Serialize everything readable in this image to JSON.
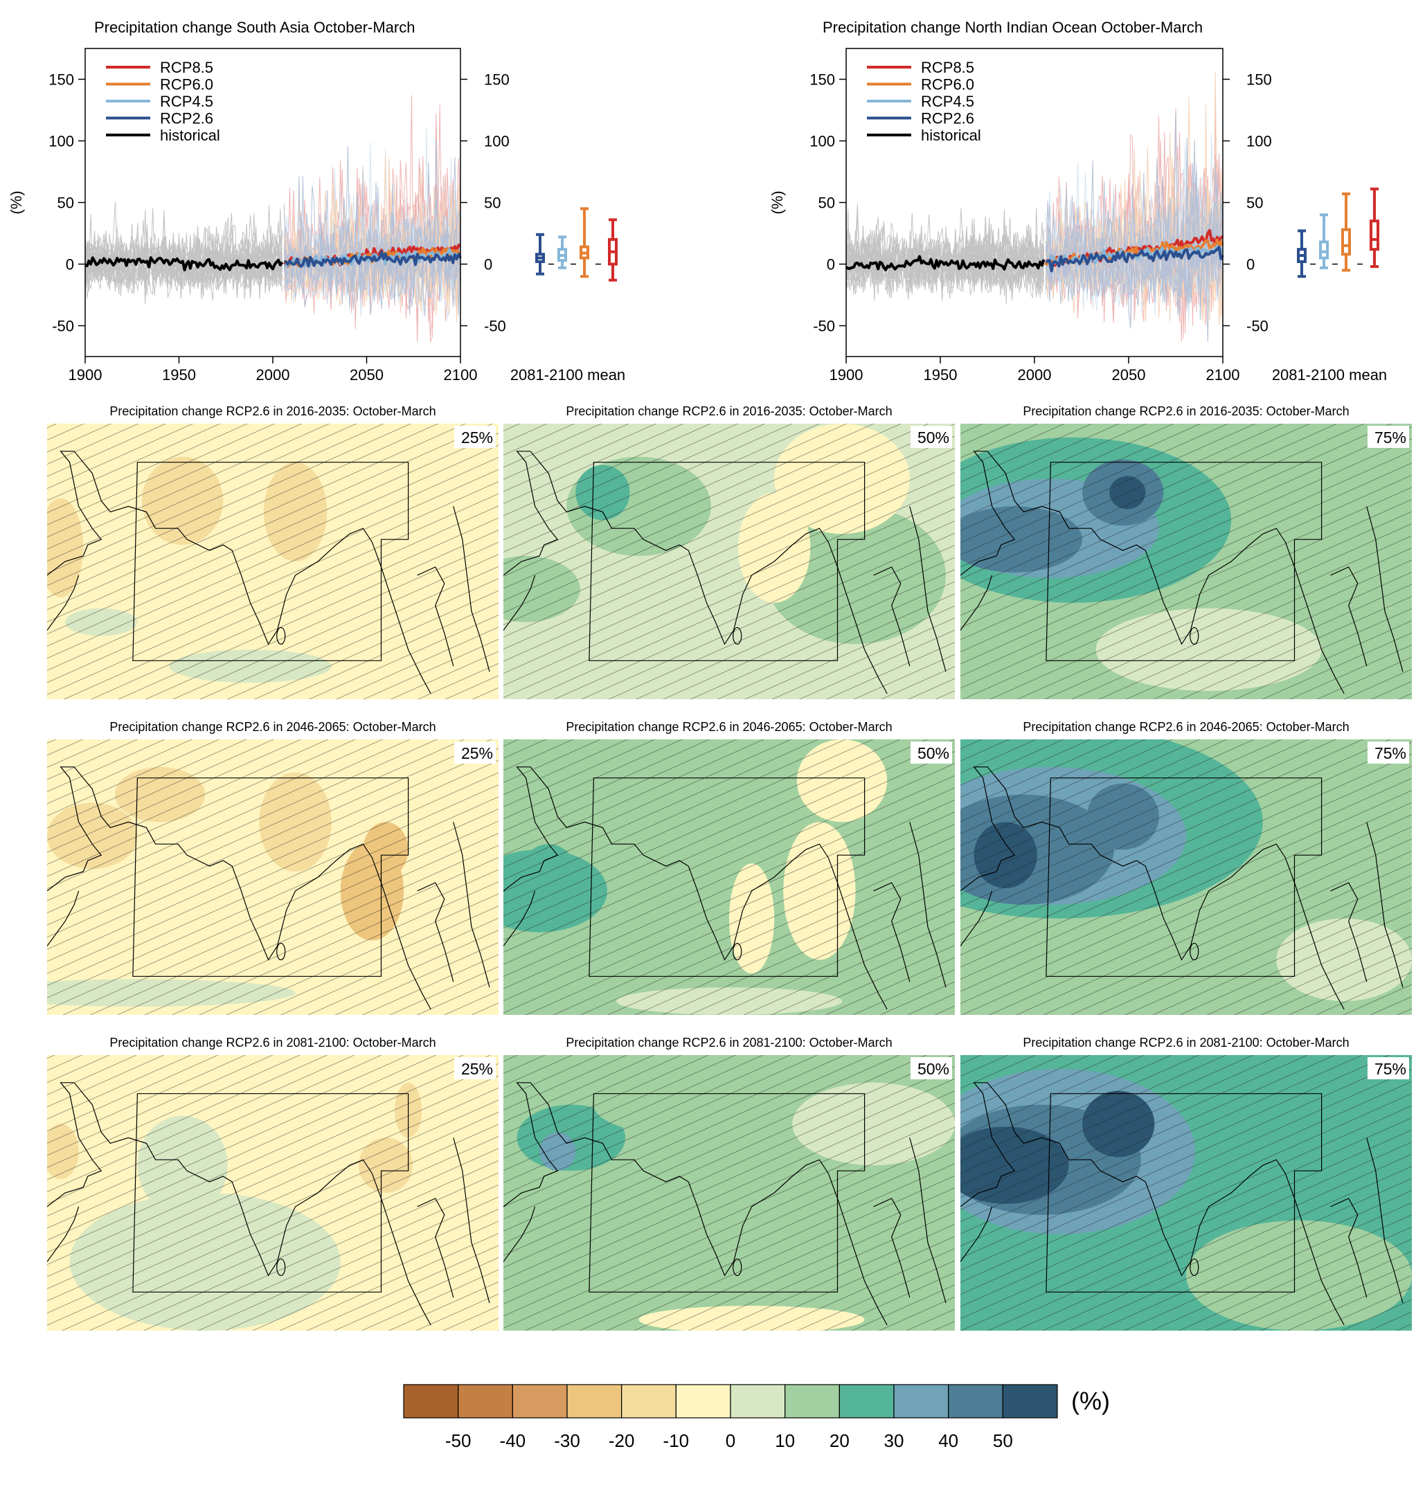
{
  "top_panels": [
    {
      "title": "Precipitation change South Asia October-March",
      "ylabel": "(%)",
      "xlabel_box": "2081-2100 mean",
      "legend": [
        "RCP8.5",
        "RCP6.0",
        "RCP4.5",
        "RCP2.6",
        "historical"
      ],
      "xticks": [
        "1900",
        "1950",
        "2000",
        "2050",
        "2100"
      ],
      "yticks": [
        "-50",
        "0",
        "50",
        "100",
        "150"
      ]
    },
    {
      "title": "Precipitation change North Indian Ocean October-March",
      "ylabel": "(%)",
      "xlabel_box": "2081-2100 mean",
      "legend": [
        "RCP8.5",
        "RCP6.0",
        "RCP4.5",
        "RCP2.6",
        "historical"
      ],
      "xticks": [
        "1900",
        "1950",
        "2000",
        "2050",
        "2100"
      ],
      "yticks": [
        "-50",
        "0",
        "50",
        "100",
        "150"
      ]
    }
  ],
  "map_rows": [
    {
      "titles": [
        "Precipitation change RCP2.6 in 2016-2035: October-March",
        "Precipitation change RCP2.6 in 2016-2035: October-March",
        "Precipitation change RCP2.6 in 2016-2035: October-March"
      ]
    },
    {
      "titles": [
        "Precipitation change RCP2.6 in 2046-2065: October-March",
        "Precipitation change RCP2.6 in 2046-2065: October-March",
        "Precipitation change RCP2.6 in 2046-2065: October-March"
      ]
    },
    {
      "titles": [
        "Precipitation change RCP2.6 in 2081-2100: October-March",
        "Precipitation change RCP2.6 in 2081-2100: October-March",
        "Precipitation change RCP2.6 in 2081-2100: October-March"
      ]
    }
  ],
  "percentiles": [
    "25%",
    "50%",
    "75%"
  ],
  "colorbar": {
    "unit": "(%)",
    "ticks": [
      "-50",
      "-40",
      "-30",
      "-20",
      "-10",
      "0",
      "10",
      "20",
      "30",
      "40",
      "50"
    ],
    "colors": [
      "#a9612b",
      "#c47f43",
      "#d89b5f",
      "#edc57c",
      "#f5dd9e",
      "#fff5c0",
      "#d9e8c4",
      "#a2d0a0",
      "#55b598",
      "#70a2b8",
      "#4d7e96",
      "#2c5570"
    ]
  },
  "chart_data": [
    {
      "type": "line",
      "title": "Precipitation change South Asia October-March",
      "ylabel": "(%)",
      "xlim": [
        1900,
        2100
      ],
      "ylim": [
        -75,
        175
      ],
      "series": [
        {
          "name": "historical",
          "color": "#000000",
          "x": [
            1900,
            1920,
            1940,
            1960,
            1980,
            2005
          ],
          "values": [
            1,
            2,
            3,
            1,
            -1,
            0
          ]
        },
        {
          "name": "RCP2.6",
          "color": "#2b4f8f",
          "x": [
            2006,
            2030,
            2050,
            2075,
            2100
          ],
          "values": [
            1,
            3,
            4,
            5,
            5
          ]
        },
        {
          "name": "RCP4.5",
          "color": "#86b7d9",
          "x": [
            2006,
            2030,
            2050,
            2075,
            2100
          ],
          "values": [
            1,
            3,
            5,
            7,
            8
          ]
        },
        {
          "name": "RCP6.0",
          "color": "#e57f31",
          "x": [
            2006,
            2030,
            2050,
            2075,
            2100
          ],
          "values": [
            1,
            3,
            5,
            8,
            10
          ]
        },
        {
          "name": "RCP8.5",
          "color": "#d12b29",
          "x": [
            2006,
            2030,
            2050,
            2075,
            2100
          ],
          "values": [
            1,
            4,
            7,
            11,
            14
          ]
        }
      ],
      "boxplot_2081_2100": [
        {
          "name": "RCP2.6",
          "color": "#2b4f8f",
          "min": -8,
          "q1": 2,
          "median": 5,
          "q3": 8,
          "max": 24
        },
        {
          "name": "RCP4.5",
          "color": "#86b7d9",
          "min": -3,
          "q1": 3,
          "median": 7,
          "q3": 12,
          "max": 22
        },
        {
          "name": "RCP6.0",
          "color": "#e57f31",
          "min": -10,
          "q1": 5,
          "median": 9,
          "q3": 14,
          "max": 45
        },
        {
          "name": "RCP8.5",
          "color": "#d12b29",
          "min": -13,
          "q1": 0,
          "median": 10,
          "q3": 20,
          "max": 36
        }
      ]
    },
    {
      "type": "line",
      "title": "Precipitation change North Indian Ocean October-March",
      "ylabel": "(%)",
      "xlim": [
        1900,
        2100
      ],
      "ylim": [
        -75,
        175
      ],
      "series": [
        {
          "name": "historical",
          "color": "#000000",
          "x": [
            1900,
            1920,
            1940,
            1960,
            1980,
            2005
          ],
          "values": [
            0,
            -2,
            1,
            -1,
            0,
            1
          ]
        },
        {
          "name": "RCP2.6",
          "color": "#2b4f8f",
          "x": [
            2006,
            2030,
            2050,
            2075,
            2100
          ],
          "values": [
            1,
            4,
            6,
            8,
            9
          ]
        },
        {
          "name": "RCP4.5",
          "color": "#86b7d9",
          "x": [
            2006,
            2030,
            2050,
            2075,
            2100
          ],
          "values": [
            2,
            5,
            8,
            10,
            12
          ]
        },
        {
          "name": "RCP6.0",
          "color": "#e57f31",
          "x": [
            2006,
            2030,
            2050,
            2075,
            2100
          ],
          "values": [
            2,
            5,
            9,
            13,
            16
          ]
        },
        {
          "name": "RCP8.5",
          "color": "#d12b29",
          "x": [
            2006,
            2030,
            2050,
            2075,
            2100
          ],
          "values": [
            2,
            6,
            11,
            17,
            22
          ]
        }
      ],
      "boxplot_2081_2100": [
        {
          "name": "RCP2.6",
          "color": "#2b4f8f",
          "min": -10,
          "q1": 2,
          "median": 7,
          "q3": 12,
          "max": 27
        },
        {
          "name": "RCP4.5",
          "color": "#86b7d9",
          "min": -3,
          "q1": 5,
          "median": 10,
          "q3": 18,
          "max": 40
        },
        {
          "name": "RCP6.0",
          "color": "#e57f31",
          "min": -5,
          "q1": 8,
          "median": 15,
          "q3": 28,
          "max": 57
        },
        {
          "name": "RCP8.5",
          "color": "#d12b29",
          "min": -2,
          "q1": 12,
          "median": 20,
          "q3": 35,
          "max": 61
        }
      ]
    }
  ],
  "map_fields": [
    [
      {
        "base": 5,
        "blobs": [
          [
            0.03,
            0.45,
            0.05,
            0.18,
            4
          ],
          [
            0.3,
            0.28,
            0.09,
            0.16,
            4
          ],
          [
            0.55,
            0.32,
            0.07,
            0.18,
            4
          ],
          [
            0.45,
            0.88,
            0.18,
            0.06,
            6
          ],
          [
            0.12,
            0.72,
            0.08,
            0.05,
            6
          ]
        ]
      },
      {
        "base": 6,
        "blobs": [
          [
            0.05,
            0.6,
            0.12,
            0.12,
            7
          ],
          [
            0.3,
            0.3,
            0.16,
            0.18,
            7
          ],
          [
            0.78,
            0.55,
            0.2,
            0.25,
            7
          ],
          [
            0.75,
            0.2,
            0.15,
            0.2,
            5
          ],
          [
            0.6,
            0.45,
            0.08,
            0.2,
            5
          ],
          [
            0.22,
            0.25,
            0.06,
            0.1,
            8
          ]
        ]
      },
      {
        "base": 7,
        "blobs": [
          [
            0.25,
            0.35,
            0.35,
            0.3,
            8
          ],
          [
            0.2,
            0.38,
            0.24,
            0.18,
            9
          ],
          [
            0.12,
            0.42,
            0.15,
            0.12,
            10
          ],
          [
            0.36,
            0.25,
            0.09,
            0.12,
            10
          ],
          [
            0.37,
            0.25,
            0.04,
            0.06,
            11
          ],
          [
            0.8,
            0.5,
            0.18,
            0.3,
            7
          ],
          [
            0.55,
            0.82,
            0.25,
            0.15,
            6
          ]
        ]
      }
    ],
    [
      {
        "base": 5,
        "blobs": [
          [
            0.1,
            0.35,
            0.1,
            0.12,
            4
          ],
          [
            0.25,
            0.2,
            0.1,
            0.1,
            4
          ],
          [
            0.55,
            0.3,
            0.08,
            0.18,
            4
          ],
          [
            0.72,
            0.55,
            0.07,
            0.18,
            3
          ],
          [
            0.75,
            0.4,
            0.05,
            0.1,
            3
          ],
          [
            0.2,
            0.92,
            0.35,
            0.05,
            6
          ]
        ]
      },
      {
        "base": 7,
        "blobs": [
          [
            0.08,
            0.55,
            0.15,
            0.15,
            8
          ],
          [
            0.1,
            0.48,
            0.06,
            0.1,
            8
          ],
          [
            0.3,
            0.25,
            0.22,
            0.2,
            7
          ],
          [
            0.55,
            0.65,
            0.05,
            0.2,
            5
          ],
          [
            0.7,
            0.55,
            0.08,
            0.25,
            5
          ],
          [
            0.75,
            0.15,
            0.1,
            0.15,
            5
          ],
          [
            0.5,
            0.95,
            0.25,
            0.05,
            6
          ]
        ]
      },
      {
        "base": 7,
        "blobs": [
          [
            0.22,
            0.3,
            0.45,
            0.35,
            8
          ],
          [
            0.2,
            0.35,
            0.3,
            0.25,
            9
          ],
          [
            0.14,
            0.4,
            0.2,
            0.2,
            10
          ],
          [
            0.36,
            0.28,
            0.08,
            0.12,
            10
          ],
          [
            0.1,
            0.42,
            0.07,
            0.12,
            11
          ],
          [
            0.85,
            0.8,
            0.15,
            0.15,
            6
          ]
        ]
      }
    ],
    [
      {
        "base": 5,
        "blobs": [
          [
            0.35,
            0.75,
            0.3,
            0.25,
            6
          ],
          [
            0.3,
            0.4,
            0.1,
            0.18,
            6
          ],
          [
            0.8,
            0.2,
            0.03,
            0.1,
            4
          ],
          [
            0.75,
            0.4,
            0.06,
            0.1,
            4
          ],
          [
            0.03,
            0.35,
            0.04,
            0.1,
            4
          ]
        ]
      },
      {
        "base": 7,
        "blobs": [
          [
            0.3,
            0.4,
            0.35,
            0.3,
            7
          ],
          [
            0.15,
            0.3,
            0.12,
            0.12,
            8
          ],
          [
            0.12,
            0.35,
            0.04,
            0.07,
            9
          ],
          [
            0.35,
            0.18,
            0.15,
            0.1,
            7
          ],
          [
            0.55,
            0.96,
            0.25,
            0.05,
            5
          ],
          [
            0.82,
            0.25,
            0.18,
            0.15,
            6
          ]
        ]
      },
      {
        "base": 8,
        "blobs": [
          [
            0.3,
            0.4,
            0.5,
            0.45,
            8
          ],
          [
            0.22,
            0.35,
            0.3,
            0.3,
            9
          ],
          [
            0.18,
            0.38,
            0.22,
            0.2,
            10
          ],
          [
            0.1,
            0.4,
            0.14,
            0.14,
            11
          ],
          [
            0.35,
            0.25,
            0.08,
            0.12,
            11
          ],
          [
            0.75,
            0.8,
            0.25,
            0.2,
            7
          ]
        ]
      }
    ]
  ]
}
